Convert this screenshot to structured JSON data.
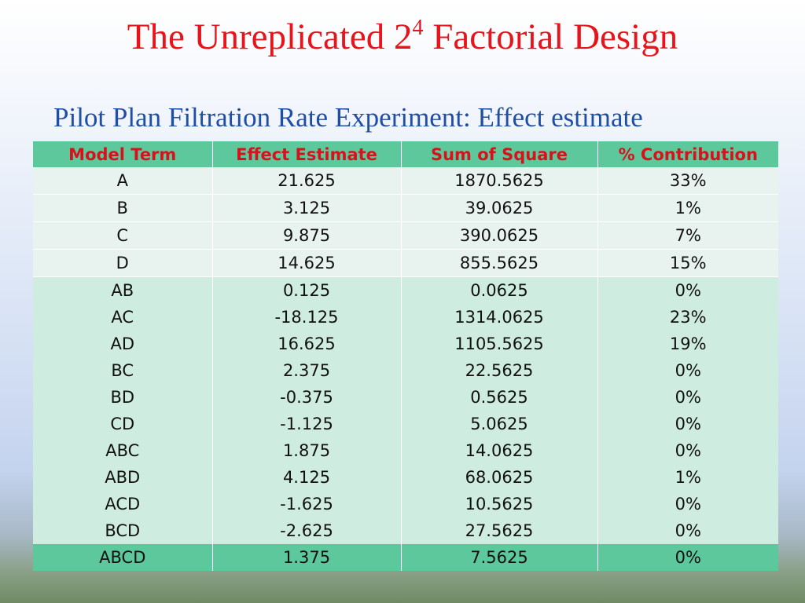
{
  "title": {
    "prefix": "The Unreplicated 2",
    "superscript": "4",
    "suffix": " Factorial Design"
  },
  "subtitle": "Pilot Plan Filtration Rate Experiment: Effect estimate",
  "table": {
    "headers": [
      "Model Term",
      "Effect Estimate",
      "Sum of Square",
      "% Contribution"
    ],
    "rows": [
      [
        "A",
        "21.625",
        "1870.5625",
        "33%"
      ],
      [
        "B",
        "3.125",
        "39.0625",
        "1%"
      ],
      [
        "C",
        "9.875",
        "390.0625",
        "7%"
      ],
      [
        "D",
        "14.625",
        "855.5625",
        "15%"
      ],
      [
        "AB",
        "0.125",
        "0.0625",
        "0%"
      ],
      [
        "AC",
        "-18.125",
        "1314.0625",
        "23%"
      ],
      [
        "AD",
        "16.625",
        "1105.5625",
        "19%"
      ],
      [
        "BC",
        "2.375",
        "22.5625",
        "0%"
      ],
      [
        "BD",
        "-0.375",
        "0.5625",
        "0%"
      ],
      [
        "CD",
        "-1.125",
        "5.0625",
        "0%"
      ],
      [
        "ABC",
        "1.875",
        "14.0625",
        "0%"
      ],
      [
        "ABD",
        "4.125",
        "68.0625",
        "1%"
      ],
      [
        "ACD",
        "-1.625",
        "10.5625",
        "0%"
      ],
      [
        "BCD",
        "-2.625",
        "27.5625",
        "0%"
      ],
      [
        "ABCD",
        "1.375",
        "7.5625",
        "0%"
      ]
    ]
  },
  "colors": {
    "title": "#e8141b",
    "subtitle": "#1f4ea5",
    "header_bg": "#5cc89b",
    "header_text": "#d8121d"
  }
}
